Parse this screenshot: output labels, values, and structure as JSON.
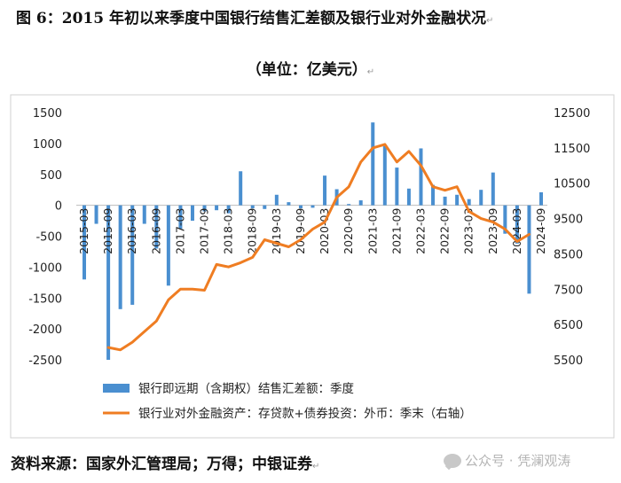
{
  "chart_data": {
    "type": "bar+line",
    "title": "图 6：2015 年初以来季度中国银行结售汇差额及银行业对外金融状况",
    "subtitle": "（单位：亿美元）",
    "source": "资料来源：国家外汇管理局；万得；中银证券",
    "watermark": "公众号 · 凭澜观涛",
    "left_axis": {
      "min": -2500,
      "max": 1500,
      "ticks": [
        1500,
        1000,
        500,
        0,
        -500,
        -1000,
        -1500,
        -2000,
        -2500
      ]
    },
    "right_axis": {
      "min": 5500,
      "max": 12500,
      "ticks": [
        12500,
        11500,
        10500,
        9500,
        8500,
        7500,
        6500,
        5500
      ]
    },
    "categories": [
      "2015-03",
      "2015-06",
      "2015-09",
      "2015-12",
      "2016-03",
      "2016-06",
      "2016-09",
      "2016-12",
      "2017-03",
      "2017-06",
      "2017-09",
      "2017-12",
      "2018-03",
      "2018-06",
      "2018-09",
      "2018-12",
      "2019-03",
      "2019-06",
      "2019-09",
      "2019-12",
      "2020-03",
      "2020-06",
      "2020-09",
      "2020-12",
      "2021-03",
      "2021-06",
      "2021-09",
      "2021-12",
      "2022-03",
      "2022-06",
      "2022-09",
      "2022-12",
      "2023-03",
      "2023-06",
      "2023-09",
      "2023-12",
      "2024-03",
      "2024-06",
      "2024-09"
    ],
    "tick_labels": [
      "2015-03",
      "2015-09",
      "2016-03",
      "2016-09",
      "2017-03",
      "2017-09",
      "2018-03",
      "2018-09",
      "2019-03",
      "2019-09",
      "2020-03",
      "2020-09",
      "2021-03",
      "2021-09",
      "2022-03",
      "2022-09",
      "2023-03",
      "2023-09",
      "2024-03",
      "2024-09"
    ],
    "series": [
      {
        "name": "银行即远期（含期权）结售汇差额：季度",
        "type": "bar",
        "axis": "left",
        "color": "#4a8fd0",
        "values": [
          -1200,
          -300,
          -2500,
          -1680,
          -1610,
          -300,
          -700,
          -1300,
          -380,
          -250,
          -100,
          -80,
          -130,
          550,
          -50,
          -60,
          170,
          50,
          -50,
          -40,
          480,
          260,
          20,
          80,
          1340,
          960,
          610,
          270,
          920,
          330,
          140,
          170,
          100,
          250,
          530,
          -460,
          -620,
          -1430,
          210
        ]
      },
      {
        "name": "银行业对外金融资产：存贷款+债券投资：外币：季末（右轴）",
        "type": "line",
        "axis": "right",
        "color": "#ef7d22",
        "values": [
          null,
          null,
          5850,
          5780,
          6000,
          6300,
          6600,
          7200,
          7500,
          7500,
          7470,
          8200,
          8130,
          8250,
          8400,
          8900,
          8800,
          8700,
          8900,
          9200,
          9400,
          10100,
          10400,
          11100,
          11500,
          11600,
          11100,
          11400,
          11000,
          10400,
          10300,
          10400,
          9700,
          9500,
          9400,
          9200,
          8850,
          9050,
          null
        ]
      }
    ],
    "legend": [
      "银行即远期（含期权）结售汇差额：季度",
      "银行业对外金融资产：存贷款+债券投资：外币：季末（右轴）"
    ],
    "legend_position": "bottom-left",
    "grid": false
  }
}
